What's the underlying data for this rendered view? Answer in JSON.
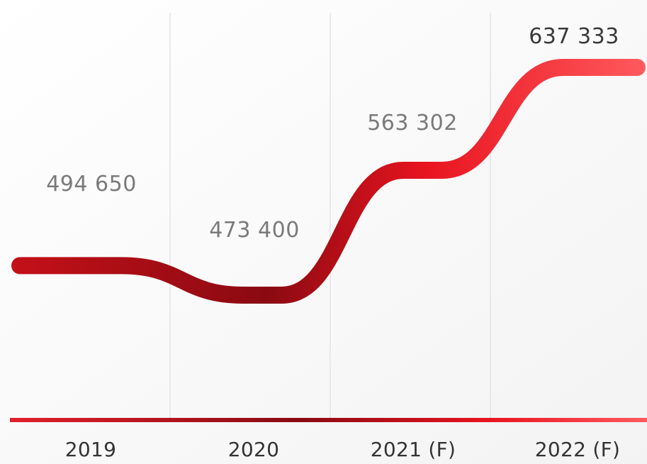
{
  "chart_data": {
    "type": "line",
    "categories": [
      "2019",
      "2020",
      "2021 (F)",
      "2022 (F)"
    ],
    "values": [
      494650,
      473400,
      563302,
      637333
    ],
    "value_labels": [
      "494 650",
      "473 400",
      "563 302",
      "637 333"
    ],
    "title": "",
    "xlabel": "",
    "ylabel": "",
    "grid": "vertical",
    "line_colors": [
      "#8a0a12",
      "#e8141f",
      "#ff5a5e"
    ]
  }
}
